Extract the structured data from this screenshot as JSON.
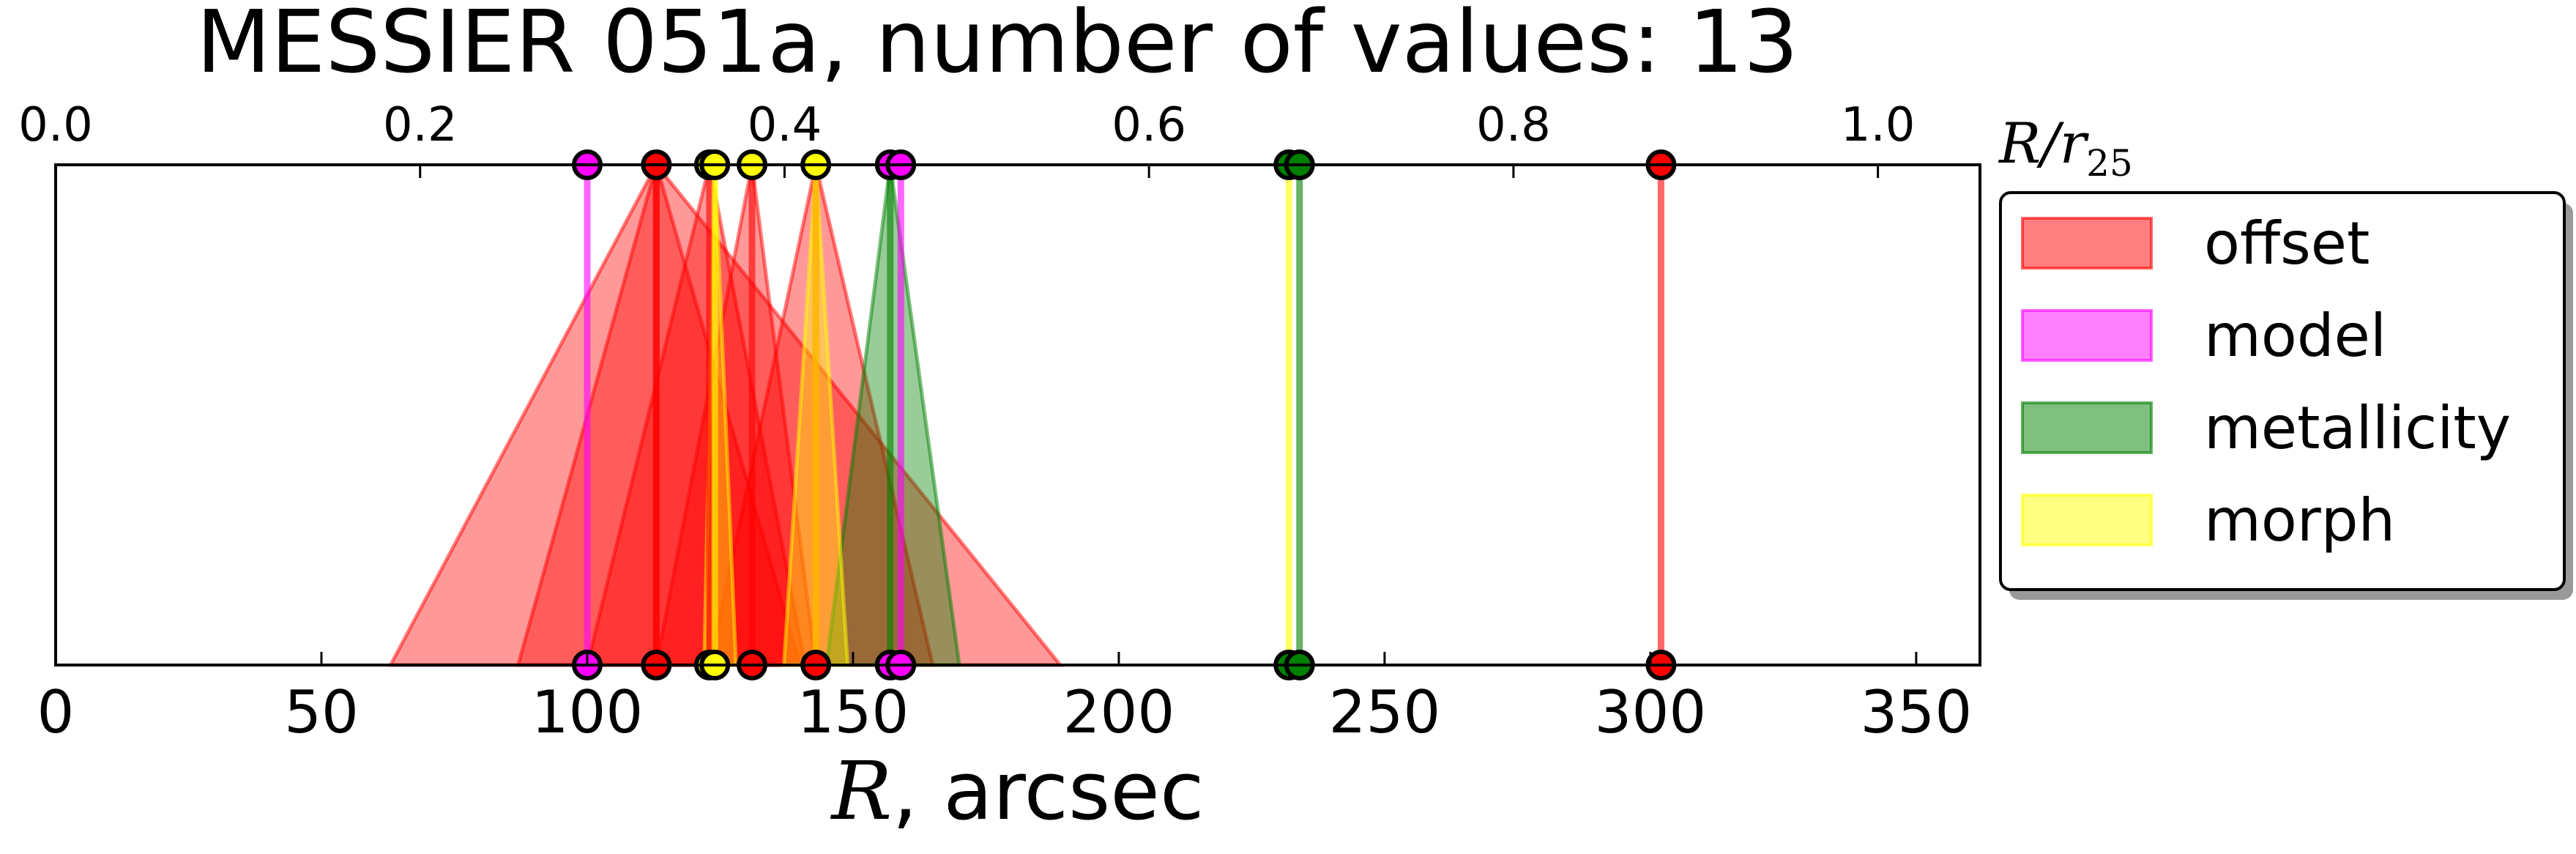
{
  "chart_data": {
    "type": "scatter",
    "title": "MESSIER 051a, number of values: 13",
    "xlabel_math": "R",
    "xlabel_text": ", arcsec",
    "top_xlabel_main": "R/r",
    "top_xlabel_sub": "25",
    "xlim": [
      0,
      362
    ],
    "xticks": [
      0,
      50,
      100,
      150,
      200,
      250,
      300,
      350
    ],
    "top_xlim": [
      0,
      1.056
    ],
    "top_xticks": [
      "0.0",
      "0.2",
      "0.4",
      "0.6",
      "0.8",
      "1.0"
    ],
    "top_xtick_values": [
      0.0,
      0.2,
      0.4,
      0.6,
      0.8,
      1.0
    ],
    "grid": false,
    "legend_position": "outside-right",
    "legend": [
      {
        "label": "offset",
        "color": "#ff0000"
      },
      {
        "label": "model",
        "color": "#ff00ff"
      },
      {
        "label": "metallicity",
        "color": "#008000"
      },
      {
        "label": "morph",
        "color": "#ffff00"
      }
    ],
    "values": [
      {
        "method": "offset",
        "r": 113,
        "lo": 63,
        "hi": 189
      },
      {
        "method": "offset",
        "r": 113,
        "lo": 87,
        "hi": 140
      },
      {
        "method": "offset",
        "r": 123,
        "lo": 100,
        "hi": 141
      },
      {
        "method": "offset",
        "r": 131,
        "lo": 113,
        "hi": 143
      },
      {
        "method": "offset",
        "r": 143,
        "lo": 123,
        "hi": 165
      },
      {
        "method": "offset",
        "r": 302,
        "lo": 302,
        "hi": 302
      },
      {
        "method": "model",
        "r": 100,
        "lo": 100,
        "hi": 100
      },
      {
        "method": "model",
        "r": 159,
        "lo": 159,
        "hi": 159
      },
      {
        "method": "metallicity",
        "r": 157,
        "lo": 145,
        "hi": 170
      },
      {
        "method": "metallicity",
        "r": 234,
        "lo": 234,
        "hi": 234
      },
      {
        "method": "morph",
        "r": 124,
        "lo": 122,
        "hi": 128
      },
      {
        "method": "morph",
        "r": 143,
        "lo": 137,
        "hi": 149
      },
      {
        "method": "morph",
        "r": 232,
        "lo": 232,
        "hi": 232
      }
    ],
    "markers": [
      {
        "r": 100,
        "top_color": "#ff00ff",
        "bottom_color": "#ff00ff"
      },
      {
        "r": 113,
        "top_color": "#ff0000",
        "bottom_color": "#ff0000"
      },
      {
        "r": 123,
        "top_color": "#ffff00",
        "bottom_color": "#ffff00"
      },
      {
        "r": 124,
        "top_color": "#ffff00",
        "bottom_color": "#ffff00"
      },
      {
        "r": 131,
        "top_color": "#ffff00",
        "bottom_color": "#ff0000"
      },
      {
        "r": 143,
        "top_color": "#ffff00",
        "bottom_color": "#ff0000"
      },
      {
        "r": 157,
        "top_color": "#ff00ff",
        "bottom_color": "#ff00ff"
      },
      {
        "r": 159,
        "top_color": "#ff00ff",
        "bottom_color": "#ff00ff"
      },
      {
        "r": 232,
        "top_color": "#008000",
        "bottom_color": "#008000"
      },
      {
        "r": 234,
        "top_color": "#008000",
        "bottom_color": "#008000"
      },
      {
        "r": 302,
        "top_color": "#ff0000",
        "bottom_color": "#ff0000"
      }
    ]
  }
}
